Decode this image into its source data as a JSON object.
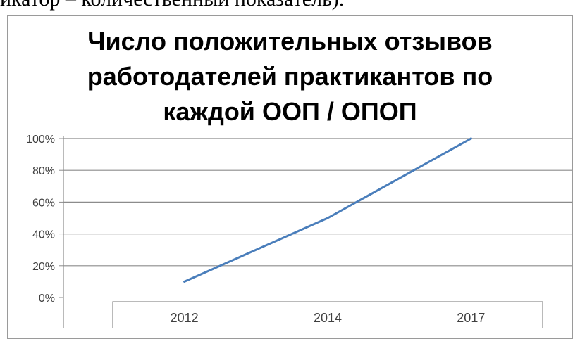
{
  "header_text": "икатор – количественный показатель).",
  "chart_data": {
    "type": "line",
    "title_lines": [
      "Число положительных отзывов",
      "работодателей практикантов по",
      "каждой ООП / ОПОП"
    ],
    "categories": [
      "2012",
      "2014",
      "2017"
    ],
    "series": [
      {
        "values": [
          10,
          50,
          100
        ]
      }
    ],
    "y_ticks": [
      "0%",
      "20%",
      "40%",
      "60%",
      "80%",
      "100%"
    ],
    "ylim": [
      0,
      100
    ],
    "grid": true,
    "legend": "none",
    "line_color": "#4a7ebb"
  }
}
